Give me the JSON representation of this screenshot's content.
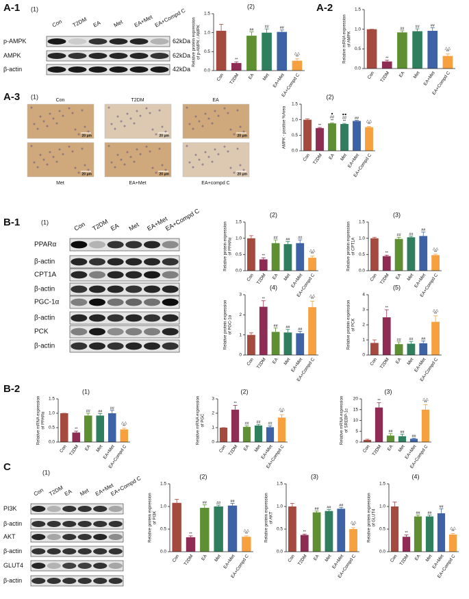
{
  "chart_data": [
    {
      "type": "bar",
      "title": "(2)",
      "ylabel": [
        "Relative protein expression",
        "of p-AMPK / AMPK"
      ],
      "categories": [
        "Con",
        "T2DM",
        "EA",
        "Met",
        "EA+Met",
        "EA+Compd C"
      ],
      "values": [
        1.05,
        0.2,
        0.92,
        1.0,
        1.02,
        0.26
      ],
      "errors": [
        0.17,
        0.03,
        0.1,
        0.1,
        0.05,
        0.05
      ],
      "colors": [
        "#a44a3f",
        "#8e2c54",
        "#5e8f33",
        "#2f7f5f",
        "#3d62a6",
        "#f7a03f"
      ],
      "annotations": [
        null,
        [
          "**"
        ],
        [
          "##"
        ],
        [
          "##"
        ],
        [
          "##"
        ],
        [
          "△△",
          "**"
        ]
      ],
      "ylim": [
        0,
        1.5
      ],
      "yticks": [
        {
          "value": 0,
          "label": "0.0"
        },
        {
          "value": 0.5,
          "label": "0.5"
        },
        {
          "value": 1,
          "label": "1.0"
        },
        {
          "value": 1.5,
          "label": "1.5"
        }
      ]
    },
    {
      "type": "bar",
      "ylabel": [
        "Relative mRNA expression",
        "of AMPK"
      ],
      "categories": [
        "Con",
        "T2DM",
        "EA",
        "Met",
        "EA+Met",
        "EA+Compd C"
      ],
      "values": [
        1.0,
        0.18,
        0.92,
        0.95,
        0.96,
        0.32
      ],
      "errors": [
        0,
        0.03,
        0.04,
        0.06,
        0.08,
        0.05
      ],
      "colors": [
        "#a44a3f",
        "#8e2c54",
        "#5e8f33",
        "#2f7f5f",
        "#3d62a6",
        "#f7a03f"
      ],
      "annotations": [
        null,
        [
          "**"
        ],
        [
          "##"
        ],
        [
          "##"
        ],
        [
          "##"
        ],
        [
          "△△",
          "**"
        ]
      ],
      "ylim": [
        0,
        1.5
      ],
      "yticks": [
        {
          "value": 0,
          "label": "0.0"
        },
        {
          "value": 0.5,
          "label": "0.5"
        },
        {
          "value": 1,
          "label": "1.0"
        },
        {
          "value": 1.5,
          "label": "1.5"
        }
      ]
    },
    {
      "type": "bar",
      "title": "(2)",
      "ylabel": [
        "AMPK - positive %Area"
      ],
      "categories": [
        "Con",
        "T2DM",
        "EA",
        "Met",
        "EA+Met",
        "EA+Compd C"
      ],
      "values": [
        1.0,
        0.73,
        0.88,
        0.86,
        0.96,
        0.76
      ],
      "errors": [
        0.03,
        0.02,
        0.02,
        0.02,
        0.02,
        0.02
      ],
      "colors": [
        "#a44a3f",
        "#8e2c54",
        "#5e8f33",
        "#2f7f5f",
        "#3d62a6",
        "#f7a03f"
      ],
      "annotations": [
        null,
        [
          "**"
        ],
        [
          "●",
          "##",
          "**"
        ],
        [
          "●●",
          "##",
          "**"
        ],
        [
          "##"
        ],
        [
          "△△",
          "**"
        ]
      ],
      "ylim": [
        0,
        1.5
      ],
      "yticks": [
        {
          "value": 0,
          "label": "0.0"
        },
        {
          "value": 0.5,
          "label": "0.5"
        },
        {
          "value": 1,
          "label": "1.0"
        },
        {
          "value": 1.5,
          "label": "1.5"
        }
      ]
    },
    {
      "type": "bar",
      "title": "(2)",
      "ylabel": [
        "Relative protein expression",
        "of PPARα"
      ],
      "categories": [
        "Con",
        "T2DM",
        "EA",
        "Met",
        "EA+Met",
        "EA+Compd C"
      ],
      "values": [
        1.0,
        0.35,
        0.85,
        0.82,
        0.85,
        0.4
      ],
      "errors": [
        0.08,
        0.05,
        0.1,
        0.08,
        0.1,
        0.05
      ],
      "colors": [
        "#a44a3f",
        "#8e2c54",
        "#5e8f33",
        "#2f7f5f",
        "#3d62a6",
        "#f7a03f"
      ],
      "annotations": [
        null,
        [
          "**"
        ],
        [
          "##"
        ],
        [
          "##"
        ],
        [
          "##"
        ],
        [
          "△△",
          "**"
        ]
      ],
      "ylim": [
        0,
        1.5
      ],
      "yticks": [
        {
          "value": 0,
          "label": "0.0"
        },
        {
          "value": 0.5,
          "label": "0.5"
        },
        {
          "value": 1,
          "label": "1.0"
        },
        {
          "value": 1.5,
          "label": "1.5"
        }
      ]
    },
    {
      "type": "bar",
      "title": "(3)",
      "ylabel": [
        "Relative protein expression",
        "of CPT1A"
      ],
      "categories": [
        "Con",
        "T2DM",
        "EA",
        "Met",
        "EA+Met",
        "EA+Compd C"
      ],
      "values": [
        1.0,
        0.45,
        0.98,
        1.03,
        1.07,
        0.48
      ],
      "errors": [
        0.03,
        0.03,
        0.05,
        0.03,
        0.12,
        0.03
      ],
      "colors": [
        "#a44a3f",
        "#8e2c54",
        "#5e8f33",
        "#2f7f5f",
        "#3d62a6",
        "#f7a03f"
      ],
      "annotations": [
        null,
        [
          "**"
        ],
        [
          "##"
        ],
        [
          "##"
        ],
        [
          "##"
        ],
        [
          "△△",
          "**"
        ]
      ],
      "ylim": [
        0,
        1.5
      ],
      "yticks": [
        {
          "value": 0,
          "label": "0.0"
        },
        {
          "value": 0.5,
          "label": "0.5"
        },
        {
          "value": 1,
          "label": "1.0"
        },
        {
          "value": 1.5,
          "label": "1.5"
        }
      ]
    },
    {
      "type": "bar",
      "title": "(4)",
      "ylabel": [
        "Relative protein expression",
        "of PGC-1α"
      ],
      "categories": [
        "Con",
        "T2DM",
        "EA",
        "Met",
        "EA+Met",
        "EA+Compd C"
      ],
      "values": [
        1.0,
        2.4,
        1.15,
        1.12,
        1.08,
        2.38
      ],
      "errors": [
        0.1,
        0.3,
        0.2,
        0.15,
        0.1,
        0.3
      ],
      "colors": [
        "#a44a3f",
        "#8e2c54",
        "#5e8f33",
        "#2f7f5f",
        "#3d62a6",
        "#f7a03f"
      ],
      "annotations": [
        null,
        [
          "**"
        ],
        [
          "##"
        ],
        [
          "##"
        ],
        [
          "##"
        ],
        [
          "△△",
          "**"
        ]
      ],
      "ylim": [
        0,
        3
      ],
      "yticks": [
        0,
        1,
        2,
        3
      ]
    },
    {
      "type": "bar",
      "title": "(5)",
      "ylabel": [
        "Relative protein expression",
        "of PCK"
      ],
      "categories": [
        "Con",
        "T2DM",
        "EA",
        "Met",
        "EA+Met",
        "EA+Compd C"
      ],
      "values": [
        0.8,
        2.5,
        0.72,
        0.75,
        0.78,
        2.2
      ],
      "errors": [
        0.2,
        0.5,
        0.15,
        0.15,
        0.15,
        0.4
      ],
      "colors": [
        "#a44a3f",
        "#8e2c54",
        "#5e8f33",
        "#2f7f5f",
        "#3d62a6",
        "#f7a03f"
      ],
      "annotations": [
        null,
        [
          "**"
        ],
        [
          "##"
        ],
        [
          "##"
        ],
        [
          "##"
        ],
        [
          "△△",
          "**"
        ]
      ],
      "ylim": [
        0,
        4
      ],
      "yticks": [
        0,
        1,
        2,
        3,
        4
      ]
    },
    {
      "type": "bar",
      "title": "(1)",
      "ylabel": [
        "Relative mRNA expression",
        "of PPARα"
      ],
      "categories": [
        "Con",
        "T2DM",
        "EA",
        "Met",
        "EA+Met",
        "EA+Compd C"
      ],
      "values": [
        1.0,
        0.33,
        0.92,
        0.92,
        1.0,
        0.44
      ],
      "errors": [
        0,
        0.05,
        0.08,
        0.07,
        0.1,
        0.04
      ],
      "colors": [
        "#a44a3f",
        "#8e2c54",
        "#5e8f33",
        "#2f7f5f",
        "#3d62a6",
        "#f7a03f"
      ],
      "annotations": [
        null,
        [
          "**"
        ],
        [
          "##"
        ],
        [
          "##"
        ],
        [
          "##"
        ],
        [
          "△△",
          "**"
        ]
      ],
      "ylim": [
        0,
        1.5
      ],
      "yticks": [
        {
          "value": 0,
          "label": "0.0"
        },
        {
          "value": 0.5,
          "label": "0.5"
        },
        {
          "value": 1,
          "label": "1.0"
        },
        {
          "value": 1.5,
          "label": "1.5"
        }
      ]
    },
    {
      "type": "bar",
      "title": "(2)",
      "ylabel": [
        "Relative mRNA expression",
        "of PGC"
      ],
      "categories": [
        "Con",
        "T2DM",
        "EA",
        "Met",
        "EA+Met",
        "EA+Compd C"
      ],
      "values": [
        1.0,
        2.25,
        1.05,
        1.15,
        1.03,
        1.7
      ],
      "errors": [
        0,
        0.3,
        0.08,
        0.08,
        0.1,
        0.2
      ],
      "colors": [
        "#a44a3f",
        "#8e2c54",
        "#5e8f33",
        "#2f7f5f",
        "#3d62a6",
        "#f7a03f"
      ],
      "annotations": [
        null,
        [
          "**"
        ],
        [
          "##"
        ],
        [
          "##"
        ],
        [
          "##"
        ],
        [
          "△△",
          "**"
        ]
      ],
      "ylim": [
        0,
        3
      ],
      "yticks": [
        0,
        1,
        2,
        3
      ]
    },
    {
      "type": "bar",
      "title": "(3)",
      "ylabel": [
        "Relative mRNA expression",
        "of SREBP-1c"
      ],
      "categories": [
        "Con",
        "T2DM",
        "EA",
        "Met",
        "EA+Met",
        "EA+Compd C"
      ],
      "values": [
        1.0,
        16,
        3.0,
        2.7,
        1.5,
        15
      ],
      "errors": [
        0.3,
        2.2,
        0.9,
        1.0,
        0.3,
        2.3
      ],
      "colors": [
        "#a44a3f",
        "#8e2c54",
        "#5e8f33",
        "#2f7f5f",
        "#3d62a6",
        "#f7a03f"
      ],
      "annotations": [
        null,
        [
          "**"
        ],
        [
          "##"
        ],
        [
          "##"
        ],
        [
          "##"
        ],
        [
          "△△",
          "**"
        ]
      ],
      "ylim": [
        0,
        20
      ],
      "yticks": [
        0,
        5,
        10,
        15,
        20
      ]
    },
    {
      "type": "bar",
      "title": "(2)",
      "ylabel": [
        "Relative protein expression",
        "of PI3K"
      ],
      "categories": [
        "Con",
        "T2DM",
        "EA",
        "Met",
        "EA+Met",
        "EA+Compd C"
      ],
      "values": [
        1.08,
        0.32,
        0.97,
        1.0,
        1.02,
        0.33
      ],
      "errors": [
        0.08,
        0.03,
        0.07,
        0.03,
        0.05,
        0.02
      ],
      "colors": [
        "#a44a3f",
        "#8e2c54",
        "#5e8f33",
        "#2f7f5f",
        "#3d62a6",
        "#f7a03f"
      ],
      "annotations": [
        null,
        [
          "**"
        ],
        [
          "##"
        ],
        [
          "##"
        ],
        [
          "##"
        ],
        [
          "△△",
          "**"
        ]
      ],
      "ylim": [
        0,
        1.5
      ],
      "yticks": [
        {
          "value": 0,
          "label": "0.0"
        },
        {
          "value": 0.5,
          "label": "0.5"
        },
        {
          "value": 1,
          "label": "1.0"
        },
        {
          "value": 1.5,
          "label": "1.5"
        }
      ]
    },
    {
      "type": "bar",
      "title": "(3)",
      "ylabel": [
        "Relative protein expression",
        "of AKT"
      ],
      "categories": [
        "Con",
        "T2DM",
        "EA",
        "Met",
        "EA+Met",
        "EA+Compd C"
      ],
      "values": [
        1.0,
        0.37,
        0.87,
        0.9,
        0.95,
        0.5
      ],
      "errors": [
        0.07,
        0.02,
        0.03,
        0.03,
        0.03,
        0.03
      ],
      "colors": [
        "#a44a3f",
        "#8e2c54",
        "#5e8f33",
        "#2f7f5f",
        "#3d62a6",
        "#f7a03f"
      ],
      "annotations": [
        null,
        [
          "**"
        ],
        [
          "##"
        ],
        [
          "##"
        ],
        [
          "##"
        ],
        [
          "△△",
          "**"
        ]
      ],
      "ylim": [
        0,
        1.5
      ],
      "yticks": [
        {
          "value": 0,
          "label": "0.0"
        },
        {
          "value": 0.5,
          "label": "0.5"
        },
        {
          "value": 1,
          "label": "1.0"
        },
        {
          "value": 1.5,
          "label": "1.5"
        }
      ]
    },
    {
      "type": "bar",
      "title": "(4)",
      "ylabel": [
        "Relative protein expression",
        "of GLUT4"
      ],
      "categories": [
        "Con",
        "T2DM",
        "EA",
        "Met",
        "EA+Met",
        "EA+Compd C"
      ],
      "values": [
        1.0,
        0.33,
        0.78,
        0.78,
        0.85,
        0.38
      ],
      "errors": [
        0.1,
        0.04,
        0.03,
        0.03,
        0.1,
        0.02
      ],
      "colors": [
        "#a44a3f",
        "#8e2c54",
        "#5e8f33",
        "#2f7f5f",
        "#3d62a6",
        "#f7a03f"
      ],
      "annotations": [
        null,
        [
          "**"
        ],
        [
          "##"
        ],
        [
          "##"
        ],
        [
          "##"
        ],
        [
          "△△",
          "**"
        ]
      ],
      "ylim": [
        0,
        1.5
      ],
      "yticks": [
        {
          "value": 0,
          "label": "0.0"
        },
        {
          "value": 0.5,
          "label": "0.5"
        },
        {
          "value": 1,
          "label": "1.0"
        },
        {
          "value": 1.5,
          "label": "1.5"
        }
      ]
    }
  ],
  "figure": {
    "panel_labels": [
      "A-1",
      "A-2",
      "A-3",
      "B-1",
      "B-2",
      "C"
    ],
    "blots": [
      {
        "title": "(1)",
        "lanes": [
          "Con",
          "T2DM",
          "EA",
          "Met",
          "EA+Met",
          "EA+Compd C"
        ],
        "rows": [
          "p-AMPK",
          "AMPK",
          "β-actin"
        ],
        "sizes": [
          "62kDa",
          "62kDa",
          "42kDa"
        ]
      },
      {
        "title": "(1)",
        "lanes": [
          "Con",
          "T2DM",
          "EA",
          "Met",
          "EA+Met",
          "EA+Compd C"
        ],
        "rows": [
          "PPARα",
          "β-actin",
          "CPT1A",
          "β-actin",
          "PGC-1α",
          "β-actin",
          "PCK",
          "β-actin"
        ]
      },
      {
        "title": "(1)",
        "lanes": [
          "Con",
          "T2DM",
          "EA",
          "Met",
          "EA+Met",
          "EA+Compd C"
        ],
        "rows": [
          "PI3K",
          "β-actin",
          "AKT",
          "β-actin",
          "GLUT4",
          "β-actin"
        ]
      }
    ],
    "micrographs": {
      "title": "(1)",
      "labels": [
        "Con",
        "T2DM",
        "EA",
        "Met",
        "EA+Met",
        "EA+compd C"
      ],
      "scale": "20 μm"
    }
  }
}
